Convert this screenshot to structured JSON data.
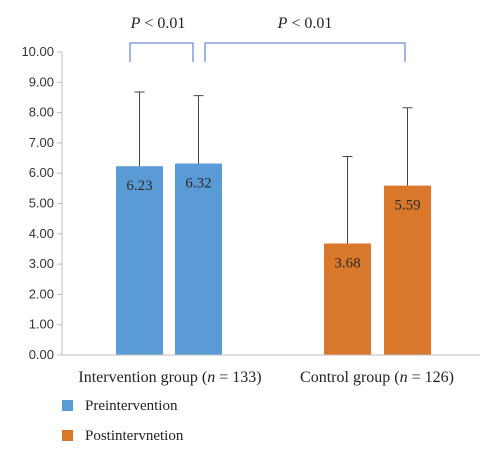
{
  "chart_data": {
    "type": "bar",
    "categories": [
      "Intervention group (n = 133)",
      "Control group (n = 126)"
    ],
    "category_parts": [
      {
        "pre": "Intervention group (",
        "n": "n",
        "post": " = 133)"
      },
      {
        "pre": "Control group (",
        "n": "n",
        "post": " = 126)"
      }
    ],
    "series": [
      {
        "name": "Preintervention",
        "values": [
          6.23,
          6.32
        ],
        "error_upper": [
          8.68,
          8.56
        ],
        "color": "#5b9bd5"
      },
      {
        "name": "Postintervnetion",
        "values": [
          3.68,
          5.59
        ],
        "error_upper": [
          6.55,
          8.16
        ],
        "color": "#d9772b"
      }
    ],
    "ylim": [
      0,
      10
    ],
    "yticks": [
      "0.00",
      "1.00",
      "2.00",
      "3.00",
      "4.00",
      "5.00",
      "6.00",
      "7.00",
      "8.00",
      "9.00",
      "10.00"
    ],
    "value_labels": [
      [
        "6.23",
        "6.32"
      ],
      [
        "3.68",
        "5.59"
      ]
    ],
    "significance": [
      {
        "label_p": "P",
        "label_rest": " < 0.01",
        "between": "intervention pre vs post"
      },
      {
        "label_p": "P",
        "label_rest": " < 0.01",
        "between": "intervention post vs control post"
      }
    ],
    "bracket_color": "#4472c4",
    "legend_position": "bottom-left",
    "grid": false
  }
}
